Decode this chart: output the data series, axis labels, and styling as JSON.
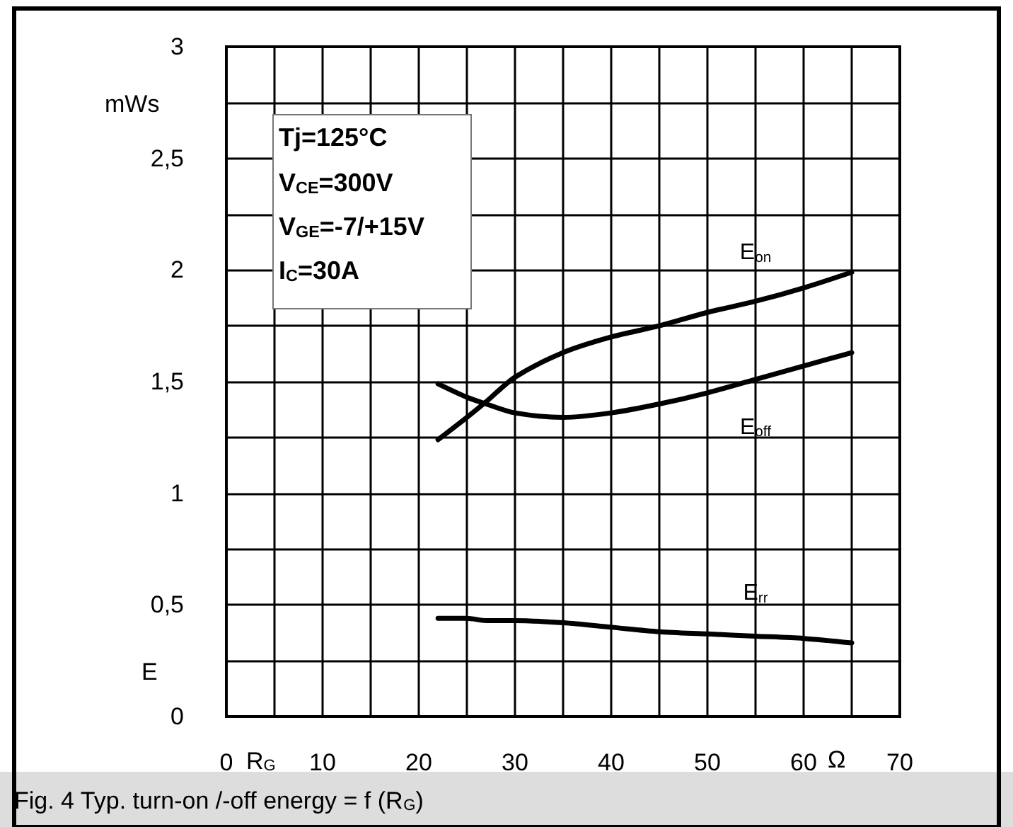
{
  "chart_data": {
    "type": "line",
    "title": "Fig. 4 Typ. turn-on /-off energy = f (R$_{G}$)",
    "xlabel": "R$_{G}$",
    "ylabel": "E",
    "annotations": [
      "mWs",
      "Ω",
      "Tj=125°C",
      "V$_{CE}$=300V",
      "V$_{GE}$=-7/+15V",
      "I$_{C}$=30A"
    ],
    "x": [
      22,
      25,
      27,
      30,
      35,
      40,
      45,
      50,
      55,
      60,
      65
    ],
    "series": [
      {
        "name": "E$_{on}$",
        "color": "#000000",
        "values": [
          1.24,
          1.34,
          1.41,
          1.52,
          1.63,
          1.7,
          1.75,
          1.81,
          1.86,
          1.92,
          1.99
        ]
      },
      {
        "name": "E$_{off}$",
        "color": "#000000",
        "values": [
          1.49,
          1.43,
          1.4,
          1.36,
          1.34,
          1.36,
          1.4,
          1.45,
          1.51,
          1.57,
          1.63
        ]
      },
      {
        "name": "E$_{rr}$",
        "color": "#000000",
        "values": [
          0.44,
          0.44,
          0.43,
          0.43,
          0.42,
          0.4,
          0.38,
          0.37,
          0.36,
          0.35,
          0.33
        ]
      }
    ],
    "xlim": [
      0,
      70
    ],
    "xticks": [
      0,
      {
        "value": 5,
        "label": null
      },
      10,
      {
        "value": 15,
        "label": null
      },
      20,
      {
        "value": 25,
        "label": null
      },
      30,
      {
        "value": 35,
        "label": null
      },
      40,
      {
        "value": 45,
        "label": null
      },
      50,
      {
        "value": 55,
        "label": null
      },
      60,
      {
        "value": 65,
        "label": null
      },
      70
    ],
    "ylim": [
      0,
      3
    ],
    "yticks": [
      0,
      {
        "value": 0.25,
        "label": null
      },
      {
        "value": 0.5,
        "label": "0,5"
      },
      {
        "value": 0.75,
        "label": null
      },
      1,
      {
        "value": 1.25,
        "label": null
      },
      {
        "value": 1.5,
        "label": "1,5"
      },
      {
        "value": 1.75,
        "label": null
      },
      2,
      {
        "value": 2.25,
        "label": null
      },
      {
        "value": 2.5,
        "label": "2,5"
      },
      {
        "value": 2.75,
        "label": null
      },
      3
    ],
    "grid": true,
    "legend": false,
    "marker": "none",
    "line_style": "solid"
  }
}
